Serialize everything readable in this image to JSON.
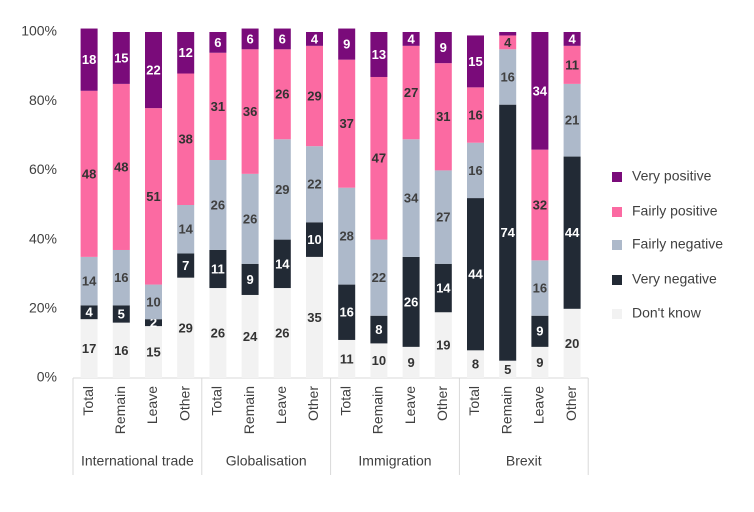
{
  "chart_data": {
    "type": "stacked-bar",
    "groups": [
      "International trade",
      "Globalisation",
      "Immigration",
      "Brexit"
    ],
    "categories": [
      "Total",
      "Remain",
      "Leave",
      "Other",
      "Total",
      "Remain",
      "Leave",
      "Other",
      "Total",
      "Remain",
      "Leave",
      "Other",
      "Total",
      "Remain",
      "Leave",
      "Other"
    ],
    "series": [
      {
        "name": "Don't know",
        "color": "#f2f2f2",
        "label_color": "#333333",
        "values": [
          17,
          16,
          15,
          29,
          26,
          24,
          26,
          35,
          11,
          10,
          9,
          19,
          8,
          5,
          9,
          20
        ]
      },
      {
        "name": "Very negative",
        "color": "#222a35",
        "label_color": "#ffffff",
        "values": [
          4,
          5,
          2,
          7,
          11,
          9,
          14,
          10,
          16,
          8,
          26,
          14,
          44,
          74,
          9,
          44
        ]
      },
      {
        "name": "Fairly negative",
        "color": "#adb9ca",
        "label_color": "#404040",
        "values": [
          14,
          16,
          10,
          14,
          26,
          26,
          29,
          22,
          28,
          22,
          34,
          27,
          16,
          16,
          16,
          21
        ]
      },
      {
        "name": "Fairly positive",
        "color": "#fb6aa2",
        "label_color": "#333333",
        "values": [
          48,
          48,
          51,
          38,
          31,
          36,
          26,
          29,
          37,
          47,
          27,
          31,
          16,
          4,
          32,
          11
        ]
      },
      {
        "name": "Very positive",
        "color": "#7a0b7a",
        "label_color": "#ffffff",
        "values": [
          18,
          15,
          22,
          12,
          6,
          6,
          6,
          4,
          9,
          13,
          4,
          9,
          15,
          1,
          34,
          4
        ]
      }
    ],
    "ylim": [
      0,
      100
    ],
    "yticks": [
      {
        "value": 0,
        "label": "0%"
      },
      {
        "value": 20,
        "label": "20%"
      },
      {
        "value": 40,
        "label": "40%"
      },
      {
        "value": 60,
        "label": "60%"
      },
      {
        "value": 80,
        "label": "80%"
      },
      {
        "value": 100,
        "label": "100%"
      }
    ],
    "legend": "right"
  }
}
